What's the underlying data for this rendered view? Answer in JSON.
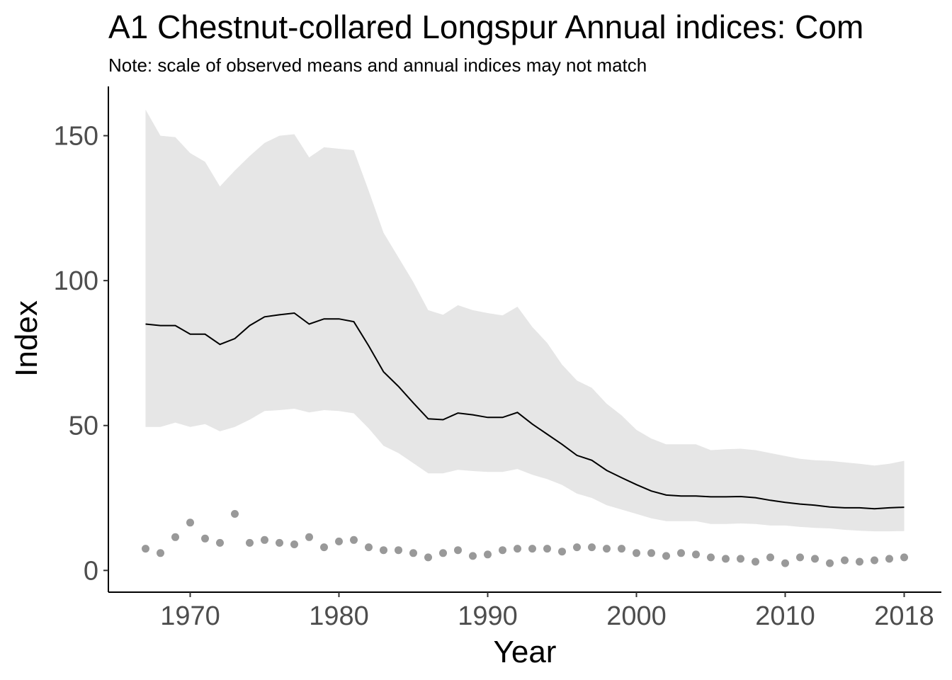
{
  "chart_data": {
    "type": "line",
    "title": "A1 Chestnut-collared Longspur Annual indices: Com",
    "subtitle": "Note: scale of observed means and annual indices may not match",
    "xlabel": "Year",
    "ylabel": "Index",
    "xlim": [
      1964.5,
      2020.5
    ],
    "ylim": [
      -7.5,
      167
    ],
    "x_ticks": [
      1970,
      1980,
      1990,
      2000,
      2010,
      2018
    ],
    "y_ticks": [
      0,
      50,
      100,
      150
    ],
    "x_tick_labels": [
      "1970",
      "1980",
      "1990",
      "2000",
      "2010",
      "2018"
    ],
    "y_tick_labels": [
      "0",
      "50",
      "100",
      "150"
    ],
    "grid": false,
    "legend": "none",
    "colors": {
      "index_line": "#000000",
      "ribbon": "#e6e6e6",
      "observed_points": "#999999",
      "axis": "#000000"
    },
    "x": [
      1967,
      1968,
      1969,
      1970,
      1971,
      1972,
      1973,
      1974,
      1975,
      1976,
      1977,
      1978,
      1979,
      1980,
      1981,
      1982,
      1983,
      1984,
      1985,
      1986,
      1987,
      1988,
      1989,
      1990,
      1991,
      1992,
      1993,
      1994,
      1995,
      1996,
      1997,
      1998,
      1999,
      2000,
      2001,
      2002,
      2003,
      2004,
      2005,
      2006,
      2007,
      2008,
      2009,
      2010,
      2011,
      2012,
      2013,
      2014,
      2015,
      2016,
      2017,
      2018
    ],
    "series": [
      {
        "kind": "index",
        "values": [
          85,
          84.5,
          84.5,
          81.5,
          81.5,
          78,
          80,
          84.5,
          87.5,
          88.2,
          88.8,
          85,
          86.8,
          86.8,
          85.8,
          77.5,
          68.5,
          63.5,
          57.8,
          52.3,
          52,
          54.3,
          53.7,
          52.8,
          52.8,
          54.5,
          50.5,
          47,
          43.5,
          39.7,
          38,
          34.5,
          32,
          29.6,
          27.4,
          26,
          25.7,
          25.7,
          25.4,
          25.4,
          25.5,
          25.1,
          24.2,
          23.5,
          22.9,
          22.5,
          21.9,
          21.6,
          21.6,
          21.3,
          21.6,
          21.8
        ]
      },
      {
        "kind": "upper",
        "values": [
          159,
          150,
          149.5,
          144,
          141,
          132.5,
          138,
          143,
          147.5,
          150,
          150.5,
          142.5,
          146,
          145.5,
          145,
          131,
          116.5,
          108,
          99.5,
          89.8,
          88.2,
          91.5,
          89.8,
          88.8,
          88,
          91,
          84,
          78.5,
          71,
          65.5,
          63,
          57.5,
          53.5,
          48.5,
          45.5,
          43.5,
          43.5,
          43.5,
          41.5,
          41.8,
          42,
          41.5,
          40.5,
          39.5,
          38.5,
          38,
          37.8,
          37.3,
          36.8,
          36.2,
          36.8,
          37.8
        ]
      },
      {
        "kind": "lower",
        "values": [
          49.5,
          49.5,
          51,
          49.5,
          50.5,
          48,
          49.5,
          52,
          55,
          55.3,
          55.8,
          54.5,
          55.3,
          55,
          54.2,
          49,
          43,
          40.5,
          37,
          33.5,
          33.5,
          34.7,
          34.3,
          34,
          34,
          35,
          33,
          31.5,
          29.5,
          26.5,
          25,
          22.5,
          21,
          19.5,
          18,
          17,
          17,
          17,
          16,
          16,
          16.2,
          16,
          15.5,
          15.5,
          15,
          14.7,
          14.5,
          14,
          13.7,
          13.5,
          13.5,
          13.6
        ]
      },
      {
        "kind": "observed",
        "values": [
          7.5,
          6,
          11.5,
          16.5,
          11,
          9.5,
          19.5,
          9.5,
          10.5,
          9.5,
          9,
          11.5,
          8,
          10,
          10.5,
          8,
          7,
          7,
          6,
          4.5,
          6,
          7,
          5,
          5.5,
          7,
          7.5,
          7.5,
          7.5,
          6.5,
          8,
          8,
          7.5,
          7.5,
          6,
          6,
          5,
          6,
          5.5,
          4.5,
          4,
          4,
          3,
          4.5,
          2.5,
          4.5,
          4,
          2.5,
          3.5,
          3,
          3.5,
          4,
          4.5
        ]
      }
    ]
  }
}
